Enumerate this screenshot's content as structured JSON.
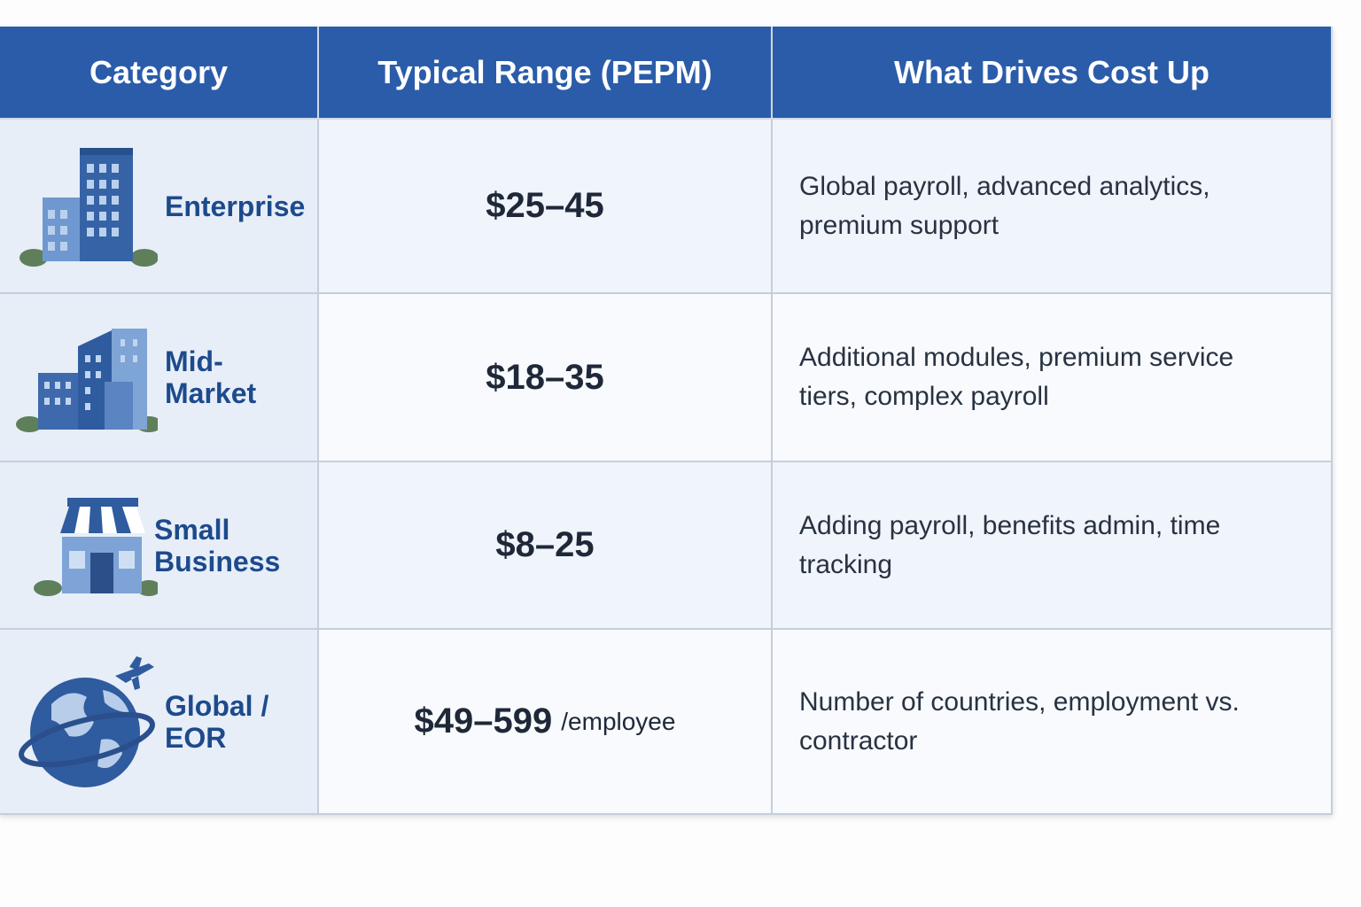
{
  "table": {
    "headers": [
      "Category",
      "Typical Range (PEPM)",
      "What Drives Cost Up"
    ],
    "rows": [
      {
        "category": "Enterprise",
        "range": "$25–45",
        "drivers": "Global payroll, advanced analytics, premium support"
      },
      {
        "category": "Mid-Market",
        "range": "$18–35",
        "drivers": "Additional modules, premium service tiers, complex payroll"
      },
      {
        "category": "Small Business",
        "range": "$8–25",
        "drivers": "Adding payroll, benefits admin, time tracking"
      },
      {
        "category": "Global / EOR",
        "range": "$49–599",
        "unit": "/employee",
        "drivers": "Number of countries, employment vs. contractor"
      }
    ]
  }
}
